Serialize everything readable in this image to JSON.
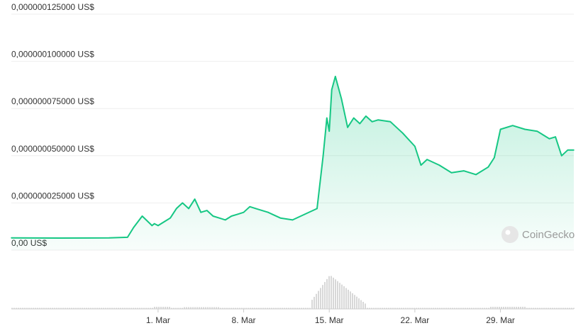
{
  "chart_data": {
    "type": "area",
    "title": "",
    "xlabel": "",
    "ylabel": "",
    "ylim": [
      0,
      1.25e-07
    ],
    "y_ticks": [
      {
        "value": 1.25e-07,
        "label": "0,000000125000 US$"
      },
      {
        "value": 1e-07,
        "label": "0,000000100000 US$"
      },
      {
        "value": 7.5e-08,
        "label": "0,000000075000 US$"
      },
      {
        "value": 5e-08,
        "label": "0,000000050000 US$"
      },
      {
        "value": 2.5e-08,
        "label": "0,000000025000 US$"
      },
      {
        "value": 0,
        "label": "0,00 US$"
      }
    ],
    "x_range_days": [
      -11,
      35
    ],
    "x_ticks": [
      {
        "day": 1,
        "label": "1. Mar"
      },
      {
        "day": 8,
        "label": "8. Mar"
      },
      {
        "day": 15,
        "label": "15. Mar"
      },
      {
        "day": 22,
        "label": "22. Mar"
      },
      {
        "day": 29,
        "label": "29. Mar"
      }
    ],
    "grid": true,
    "legend": "none",
    "line_color": "#16c784",
    "fill_color": "#16c784",
    "series": [
      {
        "x_day": [
          -11,
          -7,
          -3,
          -1.5,
          -1,
          -0.3,
          0.5,
          0.7,
          1,
          1.5,
          2,
          2.5,
          3,
          3.5,
          4,
          4.5,
          5,
          5.5,
          6,
          6.5,
          7,
          7.5,
          8,
          8.5,
          9,
          10,
          11,
          12,
          13,
          14,
          14.5,
          14.8,
          15,
          15.2,
          15.5,
          16,
          16.5,
          17,
          17.5,
          18,
          18.5,
          19,
          20,
          21,
          22,
          22.5,
          23,
          24,
          25,
          26,
          27,
          28,
          28.5,
          29,
          30,
          31,
          32,
          32.5,
          33,
          33.5,
          34,
          34.5,
          35
        ],
        "y": [
          6.5e-09,
          6.4e-09,
          6.5e-09,
          6.8e-09,
          1.2e-08,
          1.8e-08,
          1.3e-08,
          1.4e-08,
          1.3e-08,
          1.5e-08,
          1.7e-08,
          2.2e-08,
          2.5e-08,
          2.2e-08,
          2.7e-08,
          2e-08,
          2.1e-08,
          1.8e-08,
          1.7e-08,
          1.6e-08,
          1.8e-08,
          1.9e-08,
          2e-08,
          2.3e-08,
          2.2e-08,
          2e-08,
          1.7e-08,
          1.6e-08,
          1.9e-08,
          2.2e-08,
          5e-08,
          7e-08,
          6.3e-08,
          8.5e-08,
          9.2e-08,
          8e-08,
          6.5e-08,
          7e-08,
          6.7e-08,
          7.1e-08,
          6.8e-08,
          6.9e-08,
          6.8e-08,
          6.2e-08,
          5.5e-08,
          4.5e-08,
          4.8e-08,
          4.5e-08,
          4.1e-08,
          4.2e-08,
          4e-08,
          4.4e-08,
          4.9e-08,
          6.4e-08,
          6.6e-08,
          6.4e-08,
          6.3e-08,
          6.1e-08,
          5.9e-08,
          6e-08,
          5e-08,
          5.3e-08,
          5.3e-08
        ]
      }
    ]
  },
  "watermark": {
    "text": "CoinGecko",
    "icon": "coingecko-logo-icon"
  }
}
